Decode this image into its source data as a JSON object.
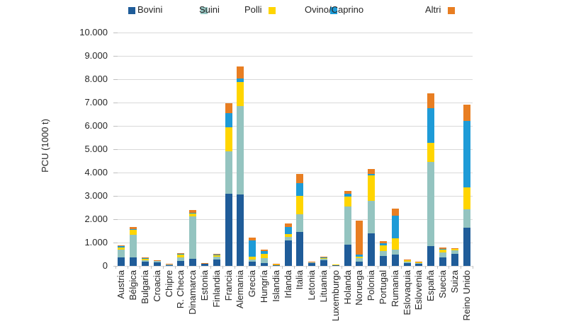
{
  "chart_data": {
    "type": "bar",
    "stacked": true,
    "title": "",
    "xlabel": "",
    "ylabel": "PCU (1000 t)",
    "ylim": [
      0,
      10000
    ],
    "ytick_step": 1000,
    "ytick_labels": [
      "0",
      "1.000",
      "2.000",
      "3.000",
      "4.000",
      "5.000",
      "6.000",
      "7.000",
      "8.000",
      "9.000",
      "10.000"
    ],
    "grid": true,
    "legend_position": "top",
    "categories": [
      "Austria",
      "Bélgica",
      "Bulgaria",
      "Croacia",
      "Chipre",
      "R. Checa",
      "Dinamarca",
      "Estonia",
      "Finlandia",
      "Francia",
      "Alemania",
      "Grecia",
      "Hungría",
      "Islandia",
      "Irlanda",
      "Italia",
      "Letonia",
      "Lituania",
      "Luxemburgo",
      "Holanda",
      "Noruega",
      "Polonia",
      "Portugal",
      "Rumania",
      "Eslovaquia",
      "Eslovenia",
      "España",
      "Suecia",
      "Suiza",
      "Reino Unido"
    ],
    "series": [
      {
        "name": "Bovini",
        "color": "#1F5C99",
        "values": [
          360,
          370,
          170,
          150,
          20,
          210,
          300,
          80,
          260,
          3100,
          3050,
          180,
          130,
          30,
          1100,
          1450,
          110,
          230,
          55,
          900,
          180,
          1400,
          430,
          480,
          120,
          80,
          850,
          360,
          520,
          1650
        ]
      },
      {
        "name": "Suini",
        "color": "#94C4C0",
        "values": [
          350,
          970,
          80,
          50,
          50,
          150,
          1820,
          30,
          130,
          1800,
          3800,
          100,
          200,
          20,
          150,
          750,
          40,
          70,
          10,
          1650,
          150,
          1380,
          200,
          230,
          50,
          40,
          3600,
          220,
          140,
          760
        ]
      },
      {
        "name": "Polli",
        "color": "#FFD500",
        "values": [
          80,
          210,
          60,
          30,
          20,
          120,
          130,
          10,
          80,
          1050,
          1020,
          120,
          180,
          5,
          100,
          800,
          30,
          50,
          5,
          430,
          70,
          1100,
          250,
          460,
          60,
          50,
          820,
          110,
          60,
          960
        ]
      },
      {
        "name": "Ovino/Caprino",
        "color": "#1E9BD7",
        "values": [
          60,
          20,
          35,
          5,
          10,
          30,
          10,
          5,
          20,
          600,
          160,
          690,
          130,
          25,
          330,
          550,
          5,
          10,
          0,
          100,
          80,
          50,
          100,
          980,
          30,
          5,
          1500,
          30,
          30,
          2850
        ]
      },
      {
        "name": "Altri",
        "color": "#E87E22",
        "values": [
          40,
          90,
          10,
          5,
          5,
          50,
          130,
          5,
          40,
          430,
          520,
          120,
          70,
          5,
          150,
          400,
          5,
          20,
          0,
          130,
          1460,
          220,
          80,
          300,
          10,
          5,
          630,
          80,
          10,
          680
        ]
      }
    ]
  }
}
